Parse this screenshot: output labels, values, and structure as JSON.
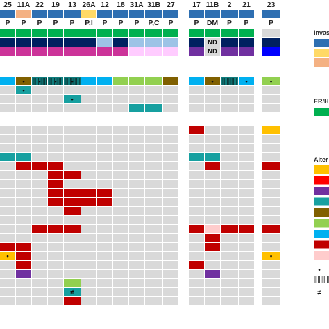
{
  "chart_data": {
    "type": "heatmap",
    "colors": {
      "empty": "#d9d9d9",
      "dark_blue_type": "#2e6fb2",
      "peach": "#f4b183",
      "light_yellow": "#ffd966",
      "green": "#00b050",
      "navy": "#002060",
      "light_blue_er": "#9dc3e6",
      "magenta": "#cc3399",
      "pink_light": "#ffccff",
      "purple": "#7030a0",
      "blue_pr": "#0000ff",
      "cyan": "#00b0f0",
      "brown": "#806000",
      "teal_dark": "#0f7d7d",
      "teal": "#17a0a0",
      "lime": "#92d050",
      "red": "#c00000",
      "light_pink": "#ffcccc",
      "orange": "#ffc000",
      "bright_red": "#ff0000"
    },
    "groups": [
      {
        "columns": [
          "25",
          "11A",
          "22",
          "19",
          "13",
          "26A",
          "12",
          "18",
          "31A",
          "31B",
          "27"
        ]
      },
      {
        "columns": [
          "17",
          "11B",
          "2",
          "21"
        ]
      },
      {
        "columns": [
          "23"
        ]
      }
    ],
    "row_labels": [
      "P",
      "P",
      "P",
      "P",
      "P",
      "P,I",
      "P",
      "P",
      "P",
      "P,C",
      "P",
      "P",
      "DM",
      "P",
      "P",
      "P"
    ],
    "nd_label": "ND",
    "symbols": {
      "dot": "•",
      "hatch": "|||",
      "neq": "≠"
    },
    "header_top": [
      "dark_blue_type",
      "peach",
      "dark_blue_type",
      "dark_blue_type",
      "dark_blue_type",
      "light_yellow",
      "dark_blue_type",
      "dark_blue_type",
      "dark_blue_type",
      "dark_blue_type",
      "dark_blue_type",
      "dark_blue_type",
      "dark_blue_type",
      "dark_blue_type",
      "dark_blue_type",
      "dark_blue_type"
    ],
    "rows_block1": [
      [
        "green",
        "green",
        "green",
        "green",
        "green",
        "green",
        "green",
        "green",
        "green",
        "green",
        "green",
        "green",
        "green",
        "green",
        "green",
        "empty"
      ],
      [
        "navy",
        "navy",
        "navy",
        "navy",
        "navy",
        "navy",
        "light_blue_er",
        "navy",
        "light_blue_er",
        "light_blue_er",
        "light_blue_er",
        "navy",
        "nd",
        "navy",
        "navy",
        "navy"
      ],
      [
        "magenta",
        "magenta",
        "magenta",
        "magenta",
        "magenta",
        "magenta",
        "magenta",
        "magenta",
        "pink_light",
        "pink_light",
        "pink_light",
        "purple",
        "nd",
        "purple",
        "purple",
        "blue_pr"
      ]
    ],
    "rows_block2": [
      [
        "cyan",
        "brown:dot",
        "teal_dark:hatch:dot",
        "teal_dark:hatch:dot",
        "teal_dark:hatch:dot",
        "cyan",
        "cyan",
        "lime",
        "lime",
        "lime",
        "brown",
        "cyan",
        "brown:dot",
        "teal_dark:hatch",
        "cyan:dot",
        "lime:dot"
      ],
      [
        "empty",
        "teal:dot",
        "empty",
        "empty",
        "empty",
        "empty",
        "empty",
        "empty",
        "empty",
        "empty",
        "empty",
        "empty",
        "empty",
        "empty",
        "empty",
        "empty"
      ],
      [
        "empty",
        "empty",
        "empty",
        "empty",
        "teal:dot",
        "empty",
        "empty",
        "empty",
        "empty",
        "empty",
        "empty",
        "empty",
        "empty",
        "empty",
        "empty",
        "empty"
      ],
      [
        "empty",
        "empty",
        "empty",
        "empty",
        "empty",
        "empty",
        "empty",
        "empty",
        "teal",
        "teal",
        "empty",
        "empty",
        "empty",
        "empty",
        "empty",
        "empty"
      ]
    ],
    "rows_block3": [
      [
        "empty",
        "empty",
        "empty",
        "empty",
        "empty",
        "empty",
        "empty",
        "empty",
        "empty",
        "empty",
        "empty",
        "red",
        "empty",
        "empty",
        "empty",
        "orange"
      ],
      [
        "empty",
        "empty",
        "empty",
        "empty",
        "empty",
        "empty",
        "empty",
        "empty",
        "empty",
        "empty",
        "empty",
        "empty",
        "empty",
        "empty",
        "empty",
        "empty"
      ],
      [
        "empty",
        "empty",
        "empty",
        "empty",
        "empty",
        "empty",
        "empty",
        "empty",
        "empty",
        "empty",
        "empty",
        "empty",
        "empty",
        "empty",
        "empty",
        "empty"
      ],
      [
        "teal",
        "teal",
        "empty",
        "empty",
        "empty",
        "empty",
        "empty",
        "empty",
        "empty",
        "empty",
        "empty",
        "teal",
        "teal",
        "empty",
        "empty",
        "empty"
      ],
      [
        "empty",
        "red",
        "red",
        "red",
        "empty",
        "empty",
        "empty",
        "empty",
        "empty",
        "empty",
        "empty",
        "empty",
        "red",
        "empty",
        "empty",
        "red"
      ],
      [
        "empty",
        "empty",
        "empty",
        "red",
        "red",
        "empty",
        "empty",
        "empty",
        "empty",
        "empty",
        "empty",
        "empty",
        "empty",
        "empty",
        "empty",
        "empty"
      ],
      [
        "empty",
        "empty",
        "empty",
        "red",
        "empty",
        "empty",
        "empty",
        "empty",
        "empty",
        "empty",
        "empty",
        "empty",
        "empty",
        "empty",
        "empty",
        "empty"
      ],
      [
        "empty",
        "empty",
        "empty",
        "red",
        "red",
        "red",
        "red",
        "empty",
        "empty",
        "empty",
        "empty",
        "empty",
        "empty",
        "empty",
        "empty",
        "empty"
      ],
      [
        "empty",
        "empty",
        "empty",
        "red",
        "red",
        "red",
        "red",
        "empty",
        "empty",
        "empty",
        "empty",
        "empty",
        "empty",
        "empty",
        "empty",
        "empty"
      ],
      [
        "empty",
        "empty",
        "empty",
        "empty",
        "red",
        "empty",
        "empty",
        "empty",
        "empty",
        "empty",
        "empty",
        "empty",
        "empty",
        "empty",
        "empty",
        "empty"
      ],
      [
        "empty",
        "empty",
        "empty",
        "empty",
        "empty",
        "empty",
        "empty",
        "empty",
        "empty",
        "empty",
        "empty",
        "empty",
        "empty",
        "empty",
        "empty",
        "empty"
      ],
      [
        "empty",
        "empty",
        "red",
        "red",
        "red",
        "empty",
        "empty",
        "empty",
        "empty",
        "empty",
        "empty",
        "red",
        "light_pink",
        "red",
        "red",
        "red"
      ],
      [
        "empty",
        "empty",
        "empty",
        "empty",
        "empty",
        "empty",
        "empty",
        "empty",
        "empty",
        "empty",
        "empty",
        "empty",
        "red",
        "empty",
        "empty",
        "empty"
      ],
      [
        "red",
        "red",
        "empty",
        "empty",
        "empty",
        "empty",
        "empty",
        "empty",
        "empty",
        "empty",
        "empty",
        "empty",
        "red",
        "empty",
        "empty",
        "empty"
      ],
      [
        "orange:dot",
        "red",
        "empty",
        "empty",
        "empty",
        "empty",
        "empty",
        "empty",
        "empty",
        "empty",
        "empty",
        "empty",
        "empty",
        "empty",
        "empty",
        "orange:dot"
      ],
      [
        "empty",
        "red",
        "empty",
        "empty",
        "empty",
        "empty",
        "empty",
        "empty",
        "empty",
        "empty",
        "empty",
        "red",
        "empty",
        "empty",
        "empty",
        "empty"
      ],
      [
        "empty",
        "purple",
        "empty",
        "empty",
        "empty",
        "empty",
        "empty",
        "empty",
        "empty",
        "empty",
        "empty",
        "empty",
        "purple",
        "empty",
        "empty",
        "empty"
      ],
      [
        "empty",
        "empty",
        "empty",
        "empty",
        "lime",
        "empty",
        "empty",
        "empty",
        "empty",
        "empty",
        "empty",
        "empty",
        "empty",
        "empty",
        "empty",
        "empty"
      ],
      [
        "empty",
        "empty",
        "empty",
        "empty",
        "teal:neq",
        "empty",
        "empty",
        "empty",
        "empty",
        "empty",
        "empty",
        "empty",
        "empty",
        "empty",
        "empty",
        "empty"
      ],
      [
        "empty",
        "empty",
        "empty",
        "empty",
        "red",
        "empty",
        "empty",
        "empty",
        "empty",
        "empty",
        "empty",
        "empty",
        "empty",
        "empty",
        "empty",
        "empty"
      ]
    ],
    "legend": {
      "invasion": {
        "label": "Invas",
        "swatches": [
          "dark_blue_type",
          "light_yellow",
          "peach"
        ]
      },
      "er_her": {
        "label": "ER/HE",
        "swatches": [
          "green"
        ]
      },
      "alterations": {
        "label": "Alter",
        "swatches": [
          "orange",
          "bright_red",
          "purple",
          "teal",
          "brown",
          "lime",
          "cyan",
          "red",
          "light_pink"
        ]
      },
      "symbol_keys": [
        "dot",
        "hatch",
        "neq"
      ]
    }
  }
}
